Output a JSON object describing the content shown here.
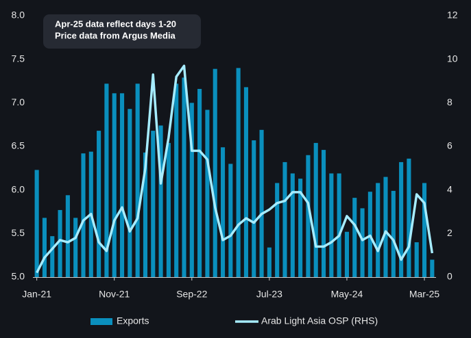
{
  "chart_data": {
    "type": "bar_line",
    "annotations": [
      "Apr-25 data reflect days 1-20",
      "Price data from Argus Media"
    ],
    "categories": [
      "Jan-21",
      null,
      null,
      null,
      null,
      null,
      null,
      null,
      null,
      null,
      "Nov-21",
      null,
      null,
      null,
      null,
      null,
      null,
      null,
      null,
      null,
      "Sep-22",
      null,
      null,
      null,
      null,
      null,
      null,
      null,
      null,
      null,
      "Jul-23",
      null,
      null,
      null,
      null,
      null,
      null,
      null,
      null,
      null,
      "May-24",
      null,
      null,
      null,
      null,
      null,
      null,
      null,
      null,
      null,
      "Mar-25",
      null
    ],
    "series": [
      {
        "name": "Exports",
        "type": "bar",
        "color": "#0a8fbd",
        "axis": "y",
        "values": [
          6.23,
          5.68,
          5.47,
          5.77,
          5.94,
          5.68,
          6.42,
          6.44,
          6.68,
          7.22,
          7.11,
          7.11,
          6.93,
          7.22,
          6.43,
          6.68,
          6.74,
          6.54,
          7.22,
          7.29,
          7.0,
          7.16,
          6.92,
          7.39,
          6.49,
          6.3,
          7.4,
          7.18,
          6.57,
          6.69,
          5.34,
          6.08,
          6.32,
          6.19,
          6.13,
          6.4,
          6.54,
          6.46,
          6.19,
          6.19,
          5.52,
          5.91,
          5.79,
          5.98,
          6.08,
          6.15,
          5.99,
          6.32,
          6.36,
          5.4,
          6.08,
          5.2
        ]
      },
      {
        "name": "Arab Light Asia OSP (RHS)",
        "type": "line",
        "color": "#a6ecff",
        "axis": "y2",
        "values": [
          0.2,
          0.9,
          1.3,
          1.7,
          1.6,
          1.8,
          2.6,
          2.9,
          1.6,
          1.2,
          2.6,
          3.2,
          2.1,
          2.7,
          5.0,
          9.3,
          4.3,
          6.4,
          9.2,
          9.7,
          5.8,
          5.8,
          5.4,
          3.2,
          1.7,
          1.9,
          2.4,
          2.7,
          2.5,
          2.9,
          3.1,
          3.4,
          3.5,
          3.9,
          3.9,
          3.4,
          1.4,
          1.4,
          1.6,
          1.9,
          2.8,
          2.4,
          1.7,
          1.9,
          1.2,
          2.1,
          1.7,
          0.8,
          1.4,
          3.8,
          3.4,
          1.1
        ]
      }
    ],
    "ylim": [
      5,
      8
    ],
    "yticks": [
      {
        "value": 5,
        "label": "5.0"
      },
      5.5,
      {
        "value": 6,
        "label": "6.0"
      },
      6.5,
      {
        "value": 7,
        "label": "7.0"
      },
      7.5,
      {
        "value": 8,
        "label": "8.0"
      }
    ],
    "y2lim": [
      0,
      12
    ],
    "y2ticks": [
      0,
      2,
      4,
      6,
      8,
      10,
      12
    ],
    "legend": "bottom"
  }
}
